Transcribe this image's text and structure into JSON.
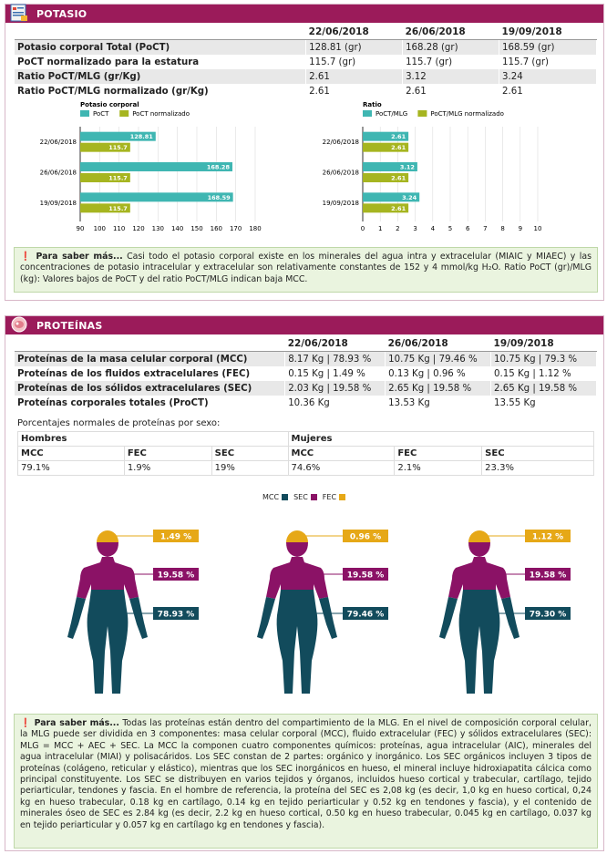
{
  "potasio": {
    "title": "POTASIO",
    "dates": [
      "22/06/2018",
      "26/06/2018",
      "19/09/2018"
    ],
    "rows": [
      {
        "label": "Potasio corporal Total (PoCT)",
        "v": [
          "128.81 (gr)",
          "168.28 (gr)",
          "168.59 (gr)"
        ]
      },
      {
        "label": "PoCT normalizado para la estatura",
        "v": [
          "115.7 (gr)",
          "115.7 (gr)",
          "115.7 (gr)"
        ]
      },
      {
        "label": "Ratio PoCT/MLG (gr/Kg)",
        "v": [
          "2.61",
          "3.12",
          "3.24"
        ]
      },
      {
        "label": "Ratio PoCT/MLG normalizado (gr/Kg)",
        "v": [
          "2.61",
          "2.61",
          "2.61"
        ]
      }
    ],
    "info_lead": "Para saber más...",
    "info_text": "Casi todo el potasio corporal existe en los minerales del agua intra y extracelular (MIAIC y MIAEC) y las concentraciones de potasio intracelular y extracelular son relativamente constantes de 152 y 4 mmol/kg H₂O. Ratio PoCT (gr)/MLG (kg): Valores bajos de PoCT y del ratio PoCT/MLG indican baja MCC."
  },
  "chart_data": [
    {
      "type": "bar",
      "title": "Potasio corporal",
      "categories": [
        "22/06/2018",
        "26/06/2018",
        "19/09/2018"
      ],
      "series": [
        {
          "name": "PoCT",
          "values": [
            128.81,
            168.28,
            168.59
          ],
          "color": "#3fb6b2"
        },
        {
          "name": "PoCT normalizado",
          "values": [
            115.7,
            115.7,
            115.7
          ],
          "color": "#a6b520"
        }
      ],
      "xlim": [
        90,
        180
      ],
      "xticks": [
        90,
        100,
        110,
        120,
        130,
        140,
        150,
        160,
        170,
        180
      ],
      "orientation": "horizontal",
      "legend": "top"
    },
    {
      "type": "bar",
      "title": "Ratio",
      "categories": [
        "22/06/2018",
        "26/06/2018",
        "19/09/2018"
      ],
      "series": [
        {
          "name": "PoCT/MLG",
          "values": [
            2.61,
            3.12,
            3.24
          ],
          "color": "#3fb6b2"
        },
        {
          "name": "PoCT/MLG normalizado",
          "values": [
            2.61,
            2.61,
            2.61
          ],
          "color": "#a6b520"
        }
      ],
      "xlim": [
        0,
        10
      ],
      "xticks": [
        0,
        1,
        2,
        3,
        4,
        5,
        6,
        7,
        8,
        9,
        10
      ],
      "orientation": "horizontal",
      "legend": "top"
    }
  ],
  "proteinas": {
    "title": "PROTEÍNAS",
    "dates": [
      "22/06/2018",
      "26/06/2018",
      "19/09/2018"
    ],
    "rows": [
      {
        "label": "Proteínas de la masa celular corporal (MCC)",
        "v": [
          "8.17 Kg | 78.93 %",
          "10.75 Kg | 79.46 %",
          "10.75 Kg | 79.3 %"
        ]
      },
      {
        "label": "Proteínas de los fluidos extracelulares (FEC)",
        "v": [
          "0.15 Kg | 1.49 %",
          "0.13 Kg | 0.96 %",
          "0.15 Kg | 1.12 %"
        ]
      },
      {
        "label": "Proteínas de los sólidos extracelulares (SEC)",
        "v": [
          "2.03 Kg | 19.58 %",
          "2.65 Kg | 19.58 %",
          "2.65 Kg | 19.58 %"
        ]
      },
      {
        "label": "Proteínas corporales totales (ProCT)",
        "v": [
          "10.36 Kg",
          "13.53 Kg",
          "13.55 Kg"
        ]
      }
    ],
    "normal_title": "Porcentajes normales de proteínas por sexo:",
    "hombres": "Hombres",
    "mujeres": "Mujeres",
    "cols": [
      "MCC",
      "FEC",
      "SEC"
    ],
    "hombres_vals": [
      "79.1%",
      "1.9%",
      "19%"
    ],
    "mujeres_vals": [
      "74.6%",
      "2.1%",
      "23.3%"
    ],
    "legend": [
      {
        "name": "MCC",
        "color": "#124b5c"
      },
      {
        "name": "SEC",
        "color": "#8b1266"
      },
      {
        "name": "FEC",
        "color": "#e6a817"
      }
    ],
    "figures": [
      {
        "fec": "1.49 %",
        "sec": "19.58 %",
        "mcc": "78.93 %"
      },
      {
        "fec": "0.96 %",
        "sec": "19.58 %",
        "mcc": "79.46 %"
      },
      {
        "fec": "1.12 %",
        "sec": "19.58 %",
        "mcc": "79.30 %"
      }
    ],
    "info_lead": "Para saber más...",
    "info_text": "Todas las proteínas están dentro del compartimiento de la MLG. En el nivel de composición corporal celular, la MLG puede ser dividida en 3 componentes: masa celular corporal (MCC), fluido extracelular (FEC) y sólidos extracelulares (SEC): MLG = MCC + AEC + SEC. La MCC la componen cuatro componentes químicos: proteínas, agua intracelular (AIC), minerales del agua intracelular (MIAI) y polisacáridos. Los SEC constan de 2 partes: orgánico y inorgánico. Los SEC orgánicos incluyen 3 tipos de proteínas (colágeno, reticular y elástico), mientras que los SEC inorgánicos en hueso, el mineral incluye hidroxiapatita cálcica como principal constituyente. Los SEC se distribuyen en varios tejidos y órganos, incluidos hueso cortical y trabecular, cartílago, tejido periarticular, tendones y fascia. En el hombre de referencia, la proteína del SEC es 2,08 kg (es decir, 1,0 kg en hueso cortical, 0,24 kg en hueso trabecular, 0.18 kg en cartílago, 0.14 kg en tejido periarticular y 0.52 kg en tendones y fascia), y el contenido de minerales óseo de SEC es 2.84 kg (es decir, 2.2 kg en hueso cortical, 0.50 kg en hueso trabecular, 0.045 kg en cartílago, 0.037 kg en tejido periarticular y 0.057 kg en cartílago kg en tendones y fascia)."
  }
}
